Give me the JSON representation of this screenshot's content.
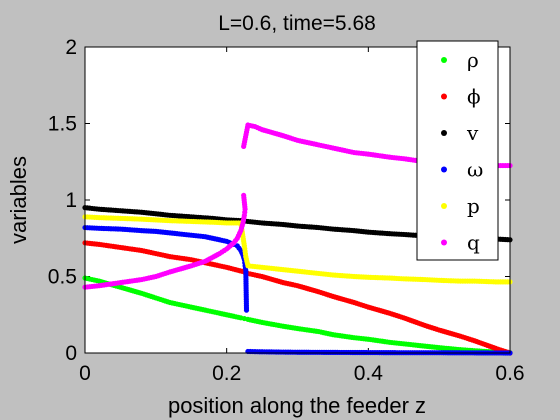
{
  "chart_data": {
    "type": "scatter",
    "title": "L=0.6, time=5.68",
    "xlabel": "position along the feeder z",
    "ylabel": "variables",
    "xlim": [
      0,
      0.6
    ],
    "ylim": [
      0,
      2
    ],
    "x_ticks": [
      "0",
      "0.2",
      "0.4",
      "0.6"
    ],
    "y_ticks": [
      "0",
      "0.5",
      "1",
      "1.5",
      "2"
    ],
    "grid": false,
    "legend_position": "top-right",
    "series": [
      {
        "name": "ρ",
        "color": "#00ff00",
        "points": [
          [
            0,
            0.49
          ],
          [
            0.02,
            0.47
          ],
          [
            0.05,
            0.43
          ],
          [
            0.08,
            0.39
          ],
          [
            0.1,
            0.36
          ],
          [
            0.12,
            0.33
          ],
          [
            0.15,
            0.3
          ],
          [
            0.18,
            0.27
          ],
          [
            0.2,
            0.25
          ],
          [
            0.22,
            0.23
          ],
          [
            0.225,
            0.225
          ],
          [
            0.23,
            0.22
          ],
          [
            0.25,
            0.2
          ],
          [
            0.28,
            0.175
          ],
          [
            0.3,
            0.16
          ],
          [
            0.33,
            0.14
          ],
          [
            0.35,
            0.12
          ],
          [
            0.38,
            0.1
          ],
          [
            0.4,
            0.09
          ],
          [
            0.43,
            0.07
          ],
          [
            0.45,
            0.06
          ],
          [
            0.48,
            0.045
          ],
          [
            0.5,
            0.035
          ],
          [
            0.53,
            0.022
          ],
          [
            0.55,
            0.015
          ],
          [
            0.58,
            0.006
          ],
          [
            0.6,
            0.002
          ]
        ]
      },
      {
        "name": "ϕ",
        "color": "#ff0000",
        "points": [
          [
            0,
            0.72
          ],
          [
            0.02,
            0.71
          ],
          [
            0.05,
            0.69
          ],
          [
            0.08,
            0.67
          ],
          [
            0.1,
            0.65
          ],
          [
            0.12,
            0.63
          ],
          [
            0.15,
            0.61
          ],
          [
            0.18,
            0.58
          ],
          [
            0.2,
            0.56
          ],
          [
            0.225,
            0.53
          ],
          [
            0.23,
            0.52
          ],
          [
            0.25,
            0.5
          ],
          [
            0.28,
            0.46
          ],
          [
            0.3,
            0.44
          ],
          [
            0.33,
            0.4
          ],
          [
            0.35,
            0.37
          ],
          [
            0.38,
            0.33
          ],
          [
            0.4,
            0.3
          ],
          [
            0.43,
            0.26
          ],
          [
            0.45,
            0.23
          ],
          [
            0.48,
            0.18
          ],
          [
            0.5,
            0.15
          ],
          [
            0.53,
            0.11
          ],
          [
            0.55,
            0.08
          ],
          [
            0.58,
            0.03
          ],
          [
            0.6,
            0.0
          ]
        ]
      },
      {
        "name": "v",
        "color": "#000000",
        "points": [
          [
            0,
            0.95
          ],
          [
            0.02,
            0.94
          ],
          [
            0.05,
            0.93
          ],
          [
            0.08,
            0.92
          ],
          [
            0.1,
            0.91
          ],
          [
            0.12,
            0.9
          ],
          [
            0.15,
            0.89
          ],
          [
            0.18,
            0.88
          ],
          [
            0.2,
            0.87
          ],
          [
            0.22,
            0.865
          ],
          [
            0.23,
            0.86
          ],
          [
            0.25,
            0.85
          ],
          [
            0.28,
            0.84
          ],
          [
            0.3,
            0.83
          ],
          [
            0.33,
            0.82
          ],
          [
            0.35,
            0.81
          ],
          [
            0.38,
            0.8
          ],
          [
            0.4,
            0.79
          ],
          [
            0.43,
            0.78
          ],
          [
            0.45,
            0.775
          ],
          [
            0.48,
            0.765
          ],
          [
            0.5,
            0.76
          ],
          [
            0.53,
            0.755
          ],
          [
            0.55,
            0.75
          ],
          [
            0.58,
            0.745
          ],
          [
            0.6,
            0.74
          ]
        ]
      },
      {
        "name": "ω",
        "color": "#0000ff",
        "points": [
          [
            0,
            0.82
          ],
          [
            0.02,
            0.815
          ],
          [
            0.05,
            0.81
          ],
          [
            0.08,
            0.8
          ],
          [
            0.1,
            0.795
          ],
          [
            0.12,
            0.785
          ],
          [
            0.15,
            0.77
          ],
          [
            0.17,
            0.76
          ],
          [
            0.19,
            0.74
          ],
          [
            0.2,
            0.73
          ],
          [
            0.21,
            0.71
          ],
          [
            0.215,
            0.7
          ],
          [
            0.22,
            0.67
          ],
          [
            0.223,
            0.64
          ],
          [
            0.225,
            0.61
          ],
          [
            0.226,
            0.57
          ],
          [
            0.227,
            0.54
          ],
          [
            0.228,
            0.28
          ],
          [
            0.23,
            0.01
          ],
          [
            0.25,
            0.008
          ],
          [
            0.28,
            0.006
          ],
          [
            0.3,
            0.005
          ],
          [
            0.35,
            0.004
          ],
          [
            0.4,
            0.003
          ],
          [
            0.45,
            0.002
          ],
          [
            0.5,
            0.002
          ],
          [
            0.55,
            0.001
          ],
          [
            0.6,
            0.0
          ]
        ]
      },
      {
        "name": "p",
        "color": "#ffff00",
        "points": [
          [
            0,
            0.89
          ],
          [
            0.02,
            0.885
          ],
          [
            0.05,
            0.88
          ],
          [
            0.08,
            0.875
          ],
          [
            0.1,
            0.87
          ],
          [
            0.12,
            0.865
          ],
          [
            0.15,
            0.86
          ],
          [
            0.18,
            0.855
          ],
          [
            0.2,
            0.85
          ],
          [
            0.22,
            0.85
          ],
          [
            0.225,
            0.7
          ],
          [
            0.227,
            0.63
          ],
          [
            0.23,
            0.57
          ],
          [
            0.25,
            0.56
          ],
          [
            0.28,
            0.545
          ],
          [
            0.3,
            0.535
          ],
          [
            0.33,
            0.52
          ],
          [
            0.35,
            0.51
          ],
          [
            0.38,
            0.5
          ],
          [
            0.4,
            0.495
          ],
          [
            0.43,
            0.49
          ],
          [
            0.45,
            0.485
          ],
          [
            0.48,
            0.48
          ],
          [
            0.5,
            0.475
          ],
          [
            0.53,
            0.47
          ],
          [
            0.55,
            0.47
          ],
          [
            0.58,
            0.465
          ],
          [
            0.6,
            0.465
          ]
        ]
      },
      {
        "name": "q",
        "color": "#ff00ff",
        "points": [
          [
            0,
            0.43
          ],
          [
            0.02,
            0.44
          ],
          [
            0.05,
            0.46
          ],
          [
            0.08,
            0.48
          ],
          [
            0.1,
            0.5
          ],
          [
            0.12,
            0.53
          ],
          [
            0.15,
            0.57
          ],
          [
            0.17,
            0.6
          ],
          [
            0.19,
            0.65
          ],
          [
            0.2,
            0.68
          ],
          [
            0.21,
            0.72
          ],
          [
            0.215,
            0.75
          ],
          [
            0.22,
            0.8
          ],
          [
            0.223,
            0.85
          ],
          [
            0.225,
            0.9
          ],
          [
            0.226,
            0.94
          ],
          [
            0.224,
            1.03
          ],
          [
            0.224,
            1.35
          ],
          [
            0.23,
            1.49
          ],
          [
            0.24,
            1.48
          ],
          [
            0.25,
            1.46
          ],
          [
            0.28,
            1.42
          ],
          [
            0.3,
            1.39
          ],
          [
            0.33,
            1.36
          ],
          [
            0.35,
            1.34
          ],
          [
            0.38,
            1.31
          ],
          [
            0.4,
            1.3
          ],
          [
            0.43,
            1.28
          ],
          [
            0.45,
            1.27
          ],
          [
            0.48,
            1.25
          ],
          [
            0.5,
            1.24
          ],
          [
            0.53,
            1.23
          ],
          [
            0.55,
            1.23
          ],
          [
            0.58,
            1.225
          ],
          [
            0.6,
            1.225
          ]
        ]
      }
    ]
  }
}
